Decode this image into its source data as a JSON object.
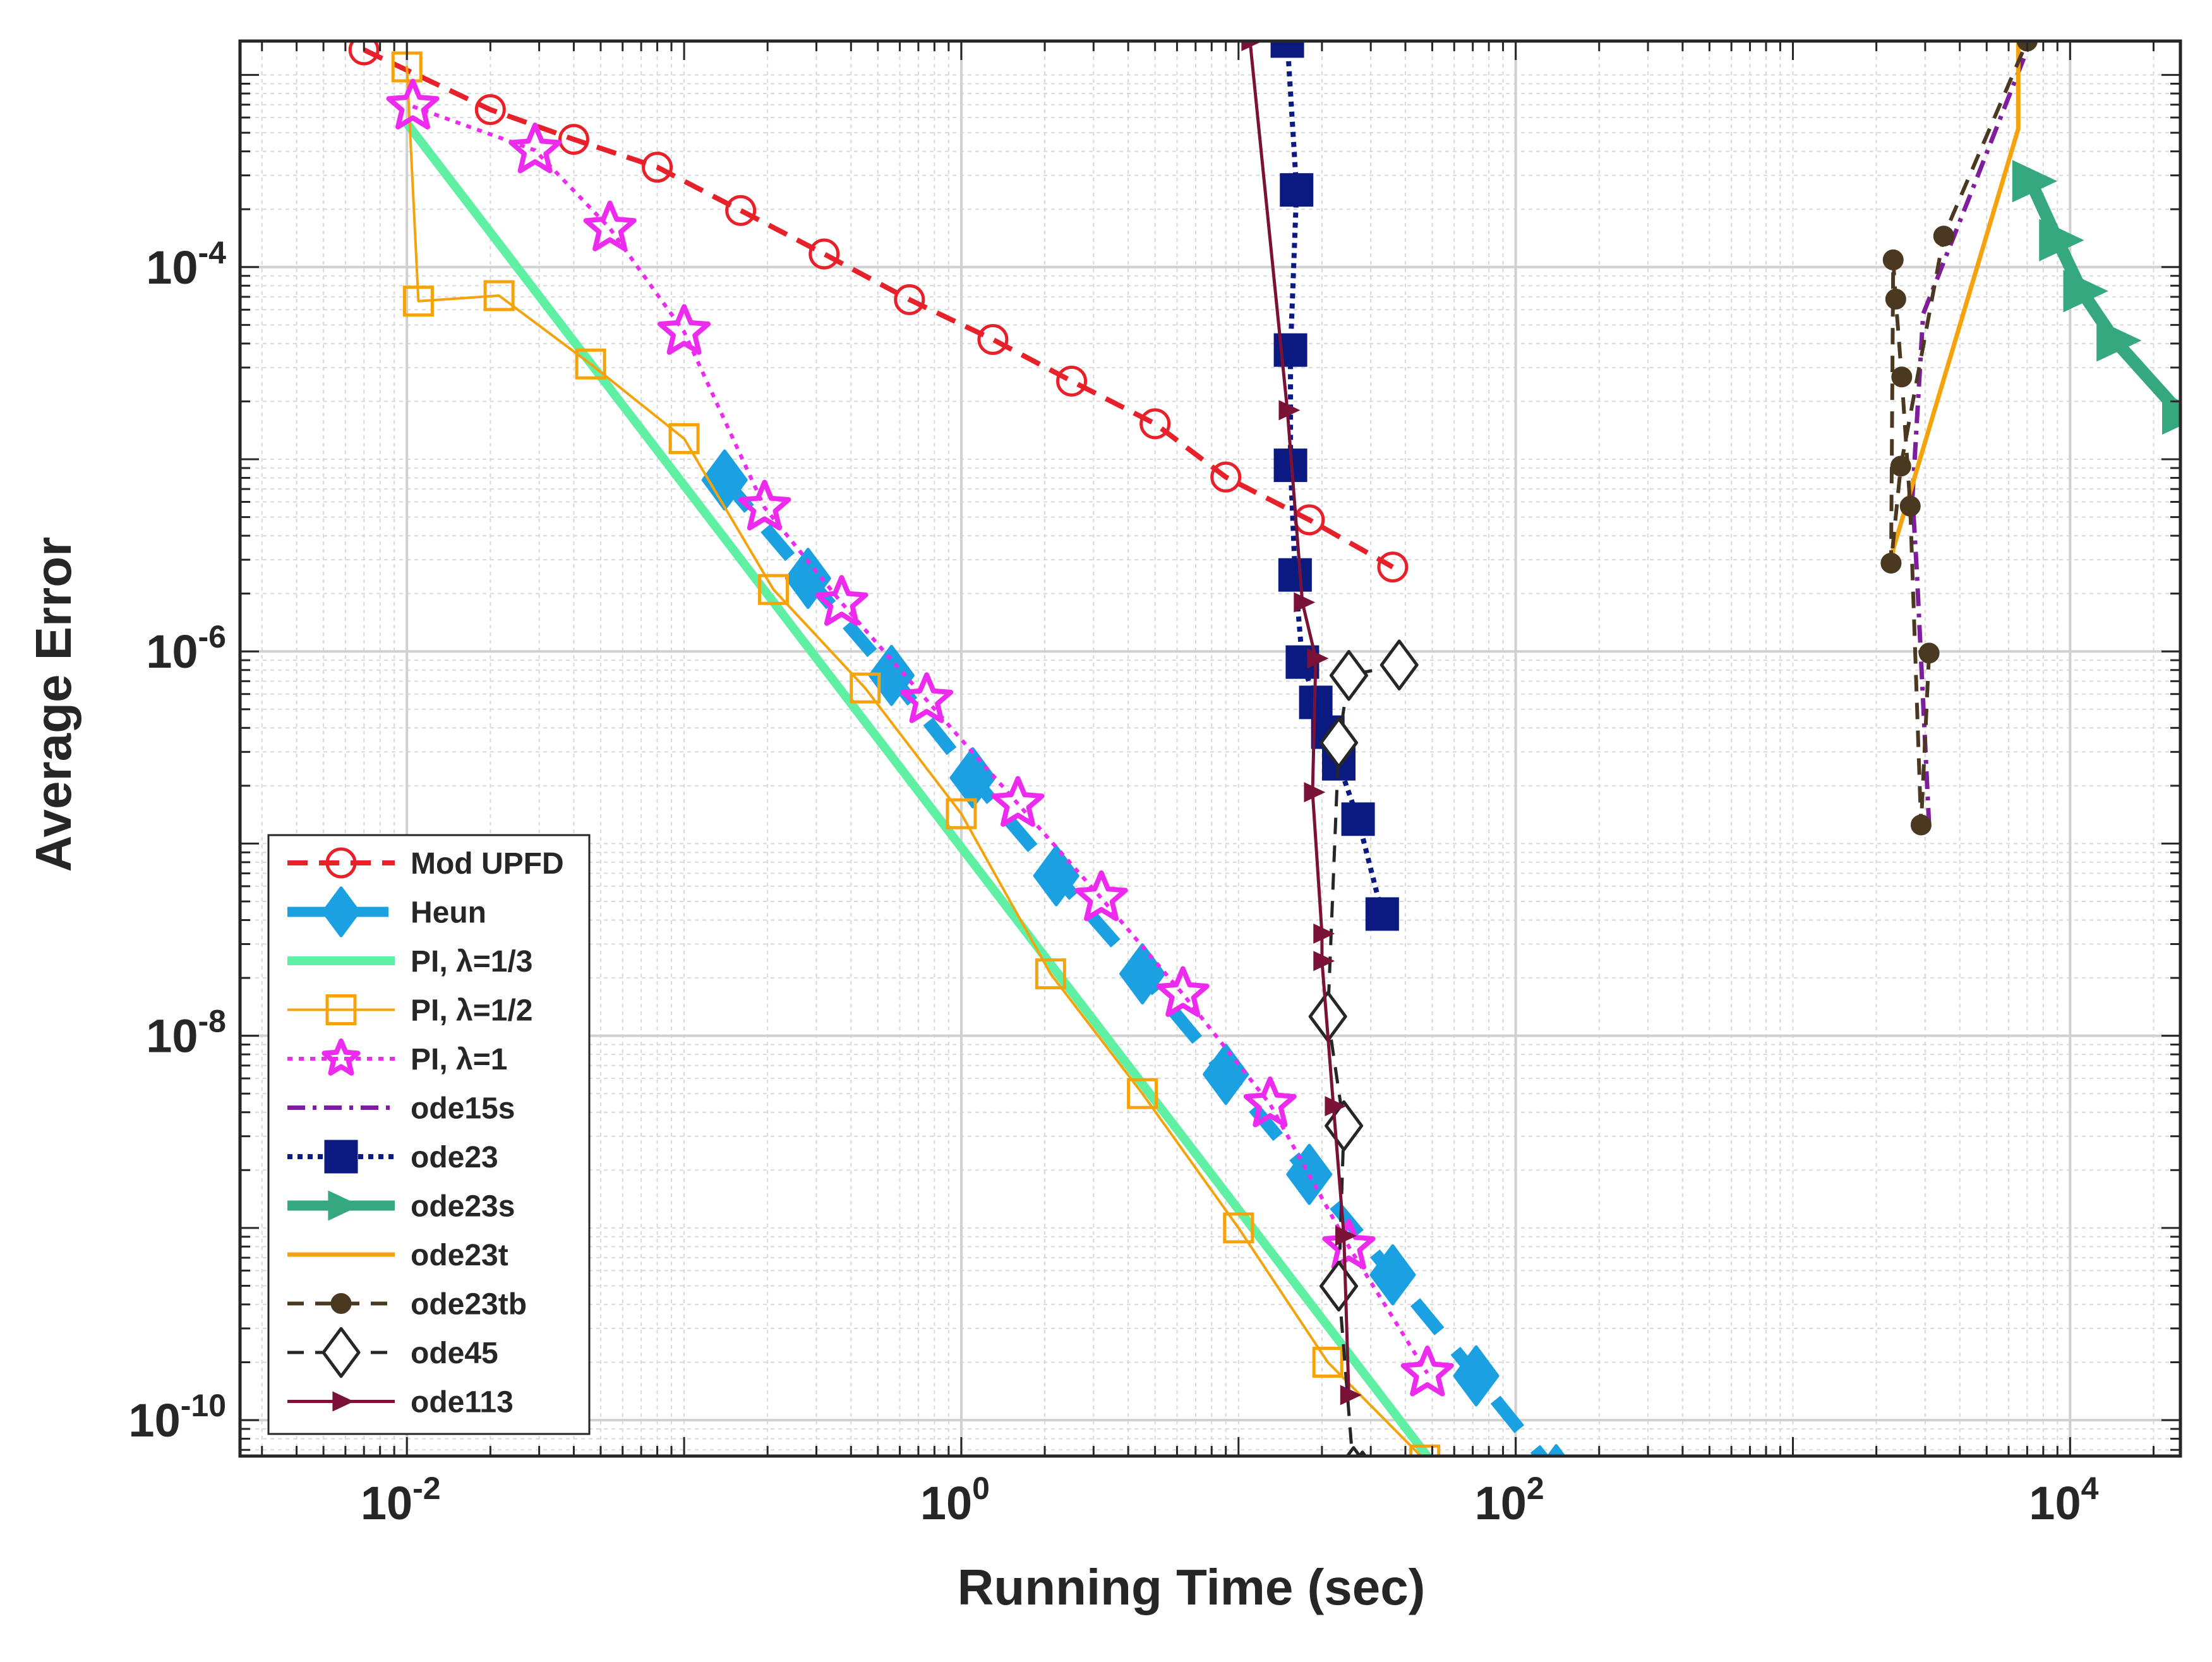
{
  "chart_data": {
    "type": "line",
    "xscale": "log",
    "yscale": "log",
    "xlabel": "Running Time (sec)",
    "ylabel": "Average Error",
    "xlim": [
      0.0025,
      25000
    ],
    "ylim": [
      6.5e-11,
      0.0015
    ],
    "grid": true,
    "legend_position": "bottom-left",
    "x_ticks": [
      {
        "value": 0.01,
        "base": "10",
        "exp": "-2"
      },
      {
        "value": 1,
        "base": "10",
        "exp": "0"
      },
      {
        "value": 100,
        "base": "10",
        "exp": "2"
      },
      {
        "value": 10000,
        "base": "10",
        "exp": "4"
      }
    ],
    "y_ticks": [
      {
        "value": 0.0001,
        "base": "10",
        "exp": "-4"
      },
      {
        "value": 1e-06,
        "base": "10",
        "exp": "-6"
      },
      {
        "value": 1e-08,
        "base": "10",
        "exp": "-8"
      },
      {
        "value": 1e-10,
        "base": "10",
        "exp": "-10"
      }
    ],
    "series": [
      {
        "name": "Mod UPFD",
        "color": "#e8202a",
        "dash": "32 18",
        "width": 8,
        "marker": "circle",
        "marker_size": 22,
        "marker_fill": "none",
        "x": [
          0.007,
          0.02,
          0.04,
          0.08,
          0.16,
          0.32,
          0.65,
          1.3,
          2.5,
          5,
          9,
          18,
          36
        ],
        "y": [
          0.00135,
          0.00066,
          0.000462,
          0.000331,
          0.000197,
          0.000117,
          6.77e-05,
          4.2e-05,
          2.55e-05,
          1.53e-05,
          8.08e-06,
          4.84e-06,
          2.75e-06
        ]
      },
      {
        "name": "Heun",
        "color": "#1ba1e2",
        "dash": "60 40",
        "width": 20,
        "marker": "diamond",
        "marker_size": 34,
        "marker_fill": "#1ba1e2",
        "x": [
          0.14,
          0.28,
          0.56,
          1.1,
          2.2,
          4.5,
          9,
          18,
          36,
          72,
          140
        ],
        "y": [
          7.8e-06,
          2.4e-06,
          7.5e-07,
          2.2e-07,
          6.8e-08,
          2.1e-08,
          6.3e-09,
          1.9e-09,
          5.7e-10,
          1.7e-10,
          5.2e-11
        ],
        "draw_from": 0.14
      },
      {
        "name": "PI, λ=1/3",
        "color": "#5ff0a4",
        "dash": "",
        "width": 14,
        "marker": "none",
        "x": [
          0.01,
          55
        ],
        "y": [
          0.00056,
          5.02e-11
        ]
      },
      {
        "name": "PI, λ=1/2",
        "color": "#f5a30c",
        "dash": "",
        "width": 4,
        "marker": "square",
        "marker_size": 22,
        "marker_fill": "none",
        "x": [
          0.01,
          0.011,
          0.0215,
          0.046,
          0.1,
          0.21,
          0.45,
          1.0,
          2.1,
          4.5,
          10,
          21,
          47
        ],
        "y": [
          0.0011,
          6.65e-05,
          7.1e-05,
          3.13e-05,
          1.28e-05,
          2.1e-06,
          6.45e-07,
          1.43e-07,
          2.1e-08,
          5e-09,
          1e-09,
          2e-10,
          6.2e-11
        ]
      },
      {
        "name": "PI, λ=1",
        "color": "#ed2bef",
        "dash": "8 10",
        "width": 6,
        "marker": "star",
        "marker_size": 40,
        "marker_fill": "#ed2bef",
        "x": [
          0.0105,
          0.029,
          0.054,
          0.1,
          0.195,
          0.37,
          0.75,
          1.6,
          3.2,
          6.3,
          13,
          25,
          48
        ],
        "y": [
          0.000685,
          0.000405,
          0.000159,
          4.6e-05,
          5.61e-06,
          1.79e-06,
          5.58e-07,
          1.61e-07,
          5.2e-08,
          1.65e-08,
          4.4e-09,
          8e-10,
          1.75e-10
        ]
      },
      {
        "name": "ode15s",
        "color": "#7e1e9c",
        "dash": "28 12 6 12",
        "width": 7,
        "marker": "none",
        "x": [
          3100,
          2800,
          2700,
          2950,
          4300,
          7200
        ],
        "y": [
          1.24e-07,
          2.6e-06,
          6.4e-06,
          5.7e-05,
          0.000225,
          0.0015
        ]
      },
      {
        "name": "ode23",
        "color": "#0a1a80",
        "dash": "8 8",
        "width": 8,
        "marker": "square",
        "marker_size": 24,
        "marker_fill": "#0a1a80",
        "x": [
          15,
          16.2,
          15.4,
          15.4,
          16,
          17,
          19,
          21,
          23,
          27,
          33
        ],
        "y": [
          0.0015,
          0.000252,
          3.7e-05,
          9.3e-06,
          2.5e-06,
          8.8e-07,
          5.43e-07,
          3.8e-07,
          2.6e-07,
          1.34e-07,
          4.3e-08
        ]
      },
      {
        "name": "ode23s",
        "color": "#35a87f",
        "dash": "",
        "width": 20,
        "marker": "triangle-right",
        "marker_size": 40,
        "marker_fill": "#35a87f",
        "x": [
          7200,
          9000,
          11000,
          14500,
          25000
        ],
        "y": [
          0.00028,
          0.000138,
          7.5e-05,
          4.15e-05,
          1.73e-05
        ]
      },
      {
        "name": "ode23t",
        "color": "#f5a30c",
        "dash": "",
        "width": 7,
        "marker": "none",
        "x": [
          2280,
          2300,
          6500,
          6500
        ],
        "y": [
          2.9e-06,
          3.4e-06,
          0.000525,
          0.0015
        ]
      },
      {
        "name": "ode23tb",
        "color": "#4a3820",
        "dash": "26 18",
        "width": 6,
        "marker": "circle",
        "marker_size": 14,
        "marker_fill": "#4a3820",
        "x": [
          3100,
          2900,
          2650,
          2470,
          2350,
          2300,
          2260,
          2450,
          3500,
          7000
        ],
        "y": [
          9.8e-07,
          1.25e-07,
          5.7e-06,
          2.68e-05,
          6.81e-05,
          0.000109,
          2.88e-06,
          9.2e-06,
          0.000145,
          0.0015
        ]
      },
      {
        "name": "ode45",
        "color": "#262626",
        "dash": "26 18",
        "width": 5,
        "marker": "diamond",
        "marker_size": 28,
        "marker_fill": "#ffffff",
        "x": [
          38,
          25,
          23,
          21,
          24,
          23,
          26,
          28
        ],
        "y": [
          8.5e-07,
          7.5e-07,
          3.35e-07,
          1.26e-08,
          3.4e-09,
          4.98e-10,
          5.4e-11,
          5.12e-11
        ]
      },
      {
        "name": "ode113",
        "color": "#7a1238",
        "dash": "",
        "width": 5,
        "marker": "triangle-right",
        "marker_size": 18,
        "marker_fill": "#7a1238",
        "x": [
          11,
          15,
          17,
          19,
          18.5,
          20,
          20,
          22,
          24,
          25
        ],
        "y": [
          0.0015,
          1.8e-05,
          1.8e-06,
          9.2e-07,
          1.85e-07,
          3.4e-08,
          2.45e-08,
          4.3e-09,
          9.1e-10,
          1.35e-10
        ]
      }
    ]
  }
}
